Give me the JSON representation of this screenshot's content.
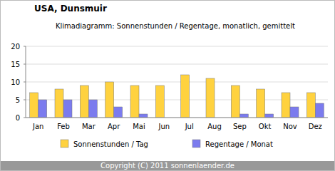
{
  "chart_data": {
    "type": "bar",
    "title": "USA, Dunsmuir",
    "subtitle": "Klimadiagramm: Sonnenstunden / Regentage, monatlich, gemittelt",
    "footer": "Copyright (C) 2011 sonnenlaender.de",
    "categories": [
      "Jan",
      "Feb",
      "Mar",
      "Apr",
      "Mai",
      "Jun",
      "Jul",
      "Aug",
      "Sep",
      "Okt",
      "Nov",
      "Dez"
    ],
    "series": [
      {
        "name": "Sonnenstunden / Tag",
        "color": "#ffd23f",
        "values": [
          7,
          8,
          9,
          10,
          9,
          9,
          12,
          11,
          9,
          8,
          7,
          7
        ]
      },
      {
        "name": "Regentage / Monat",
        "color": "#7b7bee",
        "values": [
          5,
          5,
          5,
          3,
          1,
          0,
          0,
          0,
          1,
          1,
          3,
          4
        ]
      }
    ],
    "ylim": [
      0,
      20
    ],
    "yticks": [
      0,
      5,
      10,
      15,
      20
    ],
    "grid": true,
    "legend": "bottom"
  }
}
